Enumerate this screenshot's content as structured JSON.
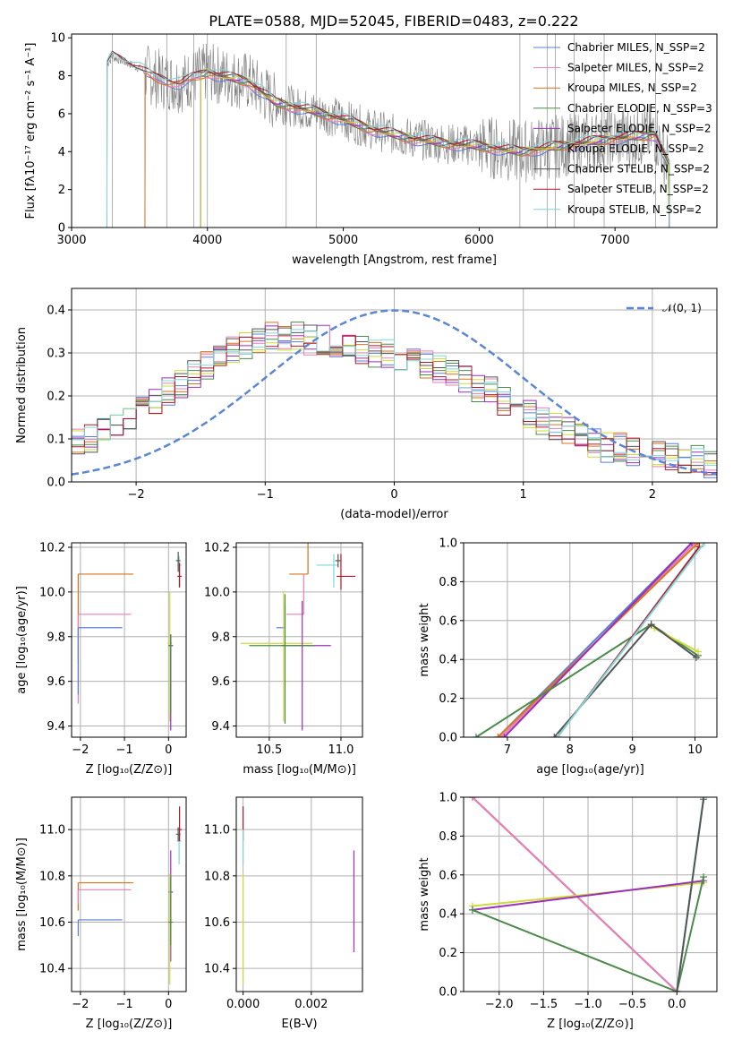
{
  "figure_title": "PLATE=0588, MJD=52045, FIBERID=0483, z=0.222",
  "colors": {
    "Chabrier MILES": "#5b7fd6",
    "Salpeter MILES": "#e87fb7",
    "Kroupa MILES": "#d9731c",
    "Chabrier ELODIE": "#4c8b4c",
    "Salpeter ELODIE": "#9b2fbf",
    "Kroupa ELODIE": "#cddc39",
    "Chabrier STELIB": "#555555",
    "Salpeter STELIB": "#b2182b",
    "Kroupa STELIB": "#7fd7d7",
    "data": "#7f7f7f",
    "normal": "#5b86d6"
  },
  "chart_data": [
    {
      "id": "spectrum",
      "type": "line",
      "title": "PLATE=0588, MJD=52045, FIBERID=0483, z=0.222",
      "xlabel": "wavelength [Angstrom, rest frame]",
      "ylabel": "Flux [fλ10⁻¹⁷ erg cm⁻² s⁻¹ A⁻¹]",
      "xlim": [
        3000,
        7750
      ],
      "ylim": [
        0,
        10.2
      ],
      "xticks": [
        "3000",
        "4000",
        "5000",
        "6000",
        "7000"
      ],
      "yticks": [
        "0",
        "2",
        "4",
        "6",
        "8",
        "10"
      ],
      "legend_position": "top-right",
      "legend": [
        "Chabrier MILES, N_SSP=2",
        "Salpeter MILES, N_SSP=2",
        "Kroupa MILES, N_SSP=2",
        "Chabrier ELODIE, N_SSP=3",
        "Salpeter ELODIE, N_SSP=2",
        "Kroupa ELODIE, N_SSP=2",
        "Chabrier STELIB, N_SSP=2",
        "Salpeter STELIB, N_SSP=2",
        "Kroupa STELIB, N_SSP=2"
      ],
      "continuum": {
        "x": [
          3260,
          3300,
          3400,
          3500,
          3600,
          3800,
          4000,
          4100,
          4300,
          4500,
          4800,
          5000,
          5200,
          5500,
          5800,
          6000,
          6300,
          6500,
          6700,
          7000,
          7300,
          7400
        ],
        "y": [
          8.6,
          9.0,
          8.7,
          8.4,
          7.9,
          7.6,
          8.2,
          8.0,
          7.7,
          6.6,
          6.1,
          5.7,
          5.2,
          4.7,
          4.4,
          4.3,
          4.0,
          4.2,
          4.4,
          4.7,
          4.9,
          3.2
        ]
      },
      "model_starts": {
        "MILES": 3540,
        "ELODIE": 3950,
        "STELIB": 3260
      }
    },
    {
      "id": "residuals",
      "type": "line",
      "xlabel": "(data-model)/error",
      "ylabel": "Normed distribution",
      "xlim": [
        -2.5,
        2.5
      ],
      "ylim": [
        0,
        0.45
      ],
      "xticks": [
        "−2",
        "−1",
        "0",
        "1",
        "2"
      ],
      "yticks": [
        "0.0",
        "0.1",
        "0.2",
        "0.3",
        "0.4"
      ],
      "legend_position": "top-right",
      "legend": [
        "𝒩(0, 1)"
      ],
      "grid": true,
      "bin_centers": [
        -2.45,
        -2.35,
        -2.25,
        -2.15,
        -2.05,
        -1.95,
        -1.85,
        -1.75,
        -1.65,
        -1.55,
        -1.45,
        -1.35,
        -1.25,
        -1.15,
        -1.05,
        -0.95,
        -0.85,
        -0.75,
        -0.65,
        -0.55,
        -0.45,
        -0.35,
        -0.25,
        -0.15,
        -0.05,
        0.05,
        0.15,
        0.25,
        0.35,
        0.45,
        0.55,
        0.65,
        0.75,
        0.85,
        0.95,
        1.05,
        1.15,
        1.25,
        1.35,
        1.45,
        1.55,
        1.65,
        1.75,
        1.85,
        1.95,
        2.05,
        2.15,
        2.25,
        2.35,
        2.45
      ],
      "envelope": [
        0.09,
        0.1,
        0.12,
        0.13,
        0.15,
        0.17,
        0.19,
        0.21,
        0.23,
        0.25,
        0.27,
        0.29,
        0.31,
        0.32,
        0.33,
        0.34,
        0.34,
        0.34,
        0.33,
        0.33,
        0.32,
        0.32,
        0.31,
        0.3,
        0.3,
        0.29,
        0.28,
        0.27,
        0.26,
        0.25,
        0.24,
        0.22,
        0.21,
        0.19,
        0.17,
        0.16,
        0.14,
        0.13,
        0.12,
        0.1,
        0.09,
        0.08,
        0.08,
        0.07,
        0.07,
        0.06,
        0.06,
        0.05,
        0.05,
        0.04
      ]
    },
    {
      "id": "age-vs-Z",
      "type": "scatter",
      "xlabel": "Z [log₁₀(Z/Z⊙)]",
      "ylabel": "age  [log₁₀(age/yr)]",
      "xlim": [
        -2.2,
        0.4
      ],
      "ylim": [
        9.35,
        10.22
      ],
      "xticks": [
        "−2",
        "−1",
        "0"
      ],
      "yticks": [
        "9.4",
        "9.6",
        "9.8",
        "10.0",
        "10.2"
      ],
      "grid": true,
      "points": [
        {
          "model": "Kroupa MILES",
          "x": -2.05,
          "x_err": [
            0,
            1.25
          ],
          "y": 10.08,
          "y_err": [
            0.4,
            0
          ]
        },
        {
          "model": "Salpeter MILES",
          "x": -2.05,
          "x_err": [
            0,
            1.2
          ],
          "y": 9.9,
          "y_err": [
            0.4,
            0
          ]
        },
        {
          "model": "Chabrier MILES",
          "x": -2.05,
          "x_err": [
            0,
            1.0
          ],
          "y": 9.84,
          "y_err": [
            0.3,
            0
          ]
        },
        {
          "model": "Kroupa ELODIE",
          "x": 0.03,
          "x_err": [
            0.05,
            0.05
          ],
          "y": 9.77,
          "y_err": [
            0.35,
            0.23
          ]
        },
        {
          "model": "Salpeter ELODIE",
          "x": 0.05,
          "x_err": [
            0.05,
            0.05
          ],
          "y": 9.76,
          "y_err": [
            0.38,
            0.05
          ]
        },
        {
          "model": "Chabrier ELODIE",
          "x": 0.05,
          "x_err": [
            0.05,
            0.05
          ],
          "y": 9.76,
          "y_err": [
            0.3,
            0.05
          ]
        },
        {
          "model": "Kroupa STELIB",
          "x": 0.24,
          "x_err": [
            0.05,
            0.05
          ],
          "y": 10.12,
          "y_err": [
            0.1,
            0.04
          ]
        },
        {
          "model": "Salpeter STELIB",
          "x": 0.25,
          "x_err": [
            0.05,
            0.05
          ],
          "y": 10.07,
          "y_err": [
            0.05,
            0.06
          ]
        },
        {
          "model": "Chabrier STELIB",
          "x": 0.22,
          "x_err": [
            0.05,
            0.05
          ],
          "y": 10.14,
          "y_err": [
            0.05,
            0.04
          ]
        }
      ]
    },
    {
      "id": "age-vs-mass",
      "type": "scatter",
      "xlabel": "mass [log₁₀(M/M⊙)]",
      "ylabel": "",
      "xlim": [
        10.27,
        11.15
      ],
      "ylim": [
        9.35,
        10.22
      ],
      "xticks": [
        "10.5",
        "11.0"
      ],
      "yticks": [
        "9.4",
        "9.6",
        "9.8",
        "10.0",
        "10.2"
      ],
      "grid": true,
      "points": [
        {
          "model": "Kroupa MILES",
          "x": 10.77,
          "x_err": [
            0.13,
            0
          ],
          "y": 10.08,
          "y_err": [
            0,
            0.25
          ]
        },
        {
          "model": "Salpeter MILES",
          "x": 10.74,
          "x_err": [
            0.12,
            0
          ],
          "y": 9.9,
          "y_err": [
            0,
            0.18
          ]
        },
        {
          "model": "Chabrier MILES",
          "x": 10.61,
          "x_err": [
            0.06,
            0
          ],
          "y": 9.84,
          "y_err": [
            0,
            0.1
          ]
        },
        {
          "model": "Kroupa ELODIE",
          "x": 10.6,
          "x_err": [
            0.3,
            0.2
          ],
          "y": 9.77,
          "y_err": [
            0.35,
            0.23
          ]
        },
        {
          "model": "Salpeter ELODIE",
          "x": 10.73,
          "x_err": [
            0.15,
            0.2
          ],
          "y": 9.76,
          "y_err": [
            0.38,
            0.2
          ]
        },
        {
          "model": "Chabrier ELODIE",
          "x": 10.61,
          "x_err": [
            0.25,
            0.2
          ],
          "y": 9.76,
          "y_err": [
            0.35,
            0.23
          ]
        },
        {
          "model": "Kroupa STELIB",
          "x": 10.95,
          "x_err": [
            0.12,
            0.03
          ],
          "y": 10.12,
          "y_err": [
            0.1,
            0.05
          ]
        },
        {
          "model": "Salpeter STELIB",
          "x": 11.0,
          "x_err": [
            0.03,
            0.1
          ],
          "y": 10.07,
          "y_err": [
            0.06,
            0.1
          ]
        },
        {
          "model": "Chabrier STELIB",
          "x": 10.98,
          "x_err": [
            0.02,
            0.02
          ],
          "y": 10.14,
          "y_err": [
            0.03,
            0.03
          ]
        }
      ]
    },
    {
      "id": "weight-vs-age",
      "type": "line",
      "xlabel": "age  [log₁₀(age/yr)]",
      "ylabel": "mass weight",
      "xlim": [
        6.3,
        10.35
      ],
      "ylim": [
        0,
        1
      ],
      "xticks": [
        "7",
        "8",
        "9",
        "10"
      ],
      "yticks": [
        "0.0",
        "0.2",
        "0.4",
        "0.6",
        "0.8",
        "1.0"
      ],
      "grid": true,
      "series": [
        {
          "model": "Chabrier MILES",
          "x": [
            6.85,
            9.95
          ],
          "y": [
            0.0,
            1.0
          ]
        },
        {
          "model": "Salpeter MILES",
          "x": [
            6.9,
            10.0
          ],
          "y": [
            0.0,
            1.0
          ]
        },
        {
          "model": "Kroupa MILES",
          "x": [
            6.85,
            10.05
          ],
          "y": [
            0.0,
            1.0
          ]
        },
        {
          "model": "Salpeter ELODIE",
          "x": [
            6.95,
            9.95
          ],
          "y": [
            0.0,
            1.0
          ]
        },
        {
          "model": "Chabrier ELODIE",
          "x": [
            6.5,
            9.3,
            10.05
          ],
          "y": [
            0.0,
            0.58,
            0.42
          ]
        },
        {
          "model": "Kroupa ELODIE",
          "x": [
            9.35,
            10.05
          ],
          "y": [
            0.56,
            0.44
          ]
        },
        {
          "model": "Chabrier STELIB",
          "x": [
            7.75,
            9.3,
            10.02
          ],
          "y": [
            0.0,
            0.58,
            0.41
          ]
        },
        {
          "model": "Salpeter STELIB",
          "x": [
            7.8,
            10.07
          ],
          "y": [
            0.0,
            0.98
          ]
        },
        {
          "model": "Kroupa STELIB",
          "x": [
            7.8,
            10.15
          ],
          "y": [
            0.0,
            1.0
          ]
        }
      ]
    },
    {
      "id": "mass-vs-Z",
      "type": "scatter",
      "xlabel": "Z [log₁₀(Z/Z⊙)]",
      "ylabel": "mass [log₁₀(M/M⊙)]",
      "xlim": [
        -2.2,
        0.4
      ],
      "ylim": [
        10.3,
        11.14
      ],
      "xticks": [
        "−2",
        "−1",
        "0"
      ],
      "yticks": [
        "10.4",
        "10.6",
        "10.8",
        "11.0"
      ],
      "grid": true,
      "points": [
        {
          "model": "Kroupa MILES",
          "x": -2.05,
          "x_err": [
            0,
            1.25
          ],
          "y": 10.77,
          "y_err": [
            0.12,
            0
          ]
        },
        {
          "model": "Salpeter MILES",
          "x": -2.05,
          "x_err": [
            0,
            1.2
          ],
          "y": 10.74,
          "y_err": [
            0.06,
            0
          ]
        },
        {
          "model": "Chabrier MILES",
          "x": -2.05,
          "x_err": [
            0,
            1.0
          ],
          "y": 10.61,
          "y_err": [
            0.07,
            0
          ]
        },
        {
          "model": "Salpeter ELODIE",
          "x": 0.05,
          "x_err": [
            0.05,
            0.05
          ],
          "y": 10.73,
          "y_err": [
            0.3,
            0.18
          ]
        },
        {
          "model": "Kroupa ELODIE",
          "x": 0.03,
          "x_err": [
            0.05,
            0.05
          ],
          "y": 10.61,
          "y_err": [
            0.28,
            0.2
          ]
        },
        {
          "model": "Chabrier ELODIE",
          "x": 0.05,
          "x_err": [
            0.05,
            0.05
          ],
          "y": 10.6,
          "y_err": [
            0.1,
            0.2
          ]
        },
        {
          "model": "Kroupa STELIB",
          "x": 0.24,
          "x_err": [
            0.05,
            0.05
          ],
          "y": 10.95,
          "y_err": [
            0.1,
            0.03
          ]
        },
        {
          "model": "Salpeter STELIB",
          "x": 0.25,
          "x_err": [
            0.05,
            0.05
          ],
          "y": 11.0,
          "y_err": [
            0.05,
            0.1
          ]
        },
        {
          "model": "Chabrier STELIB",
          "x": 0.22,
          "x_err": [
            0.05,
            0.05
          ],
          "y": 10.98,
          "y_err": [
            0.03,
            0.03
          ]
        }
      ]
    },
    {
      "id": "mass-vs-EBV",
      "type": "scatter",
      "xlabel": "E(B-V)",
      "ylabel": "",
      "xlim": [
        -0.0002,
        0.0035
      ],
      "ylim": [
        10.3,
        11.14
      ],
      "xticks": [
        "0.000",
        "0.002"
      ],
      "yticks": [
        "10.4",
        "10.6",
        "10.8",
        "11.0"
      ],
      "grid": true,
      "points": [
        {
          "model": "Salpeter ELODIE",
          "x": 0.00325,
          "x_err": [
            0,
            0
          ],
          "y": 10.73,
          "y_err": [
            0.26,
            0.18
          ]
        },
        {
          "model": "Kroupa ELODIE",
          "x": 0.0,
          "x_err": [
            0,
            0
          ],
          "y": 10.61,
          "y_err": [
            0.28,
            0.2
          ]
        },
        {
          "model": "Salpeter STELIB",
          "x": 0.0,
          "x_err": [
            0,
            0
          ],
          "y": 11.0,
          "y_err": [
            0.05,
            0.1
          ]
        },
        {
          "model": "Kroupa STELIB",
          "x": 0.0,
          "x_err": [
            0,
            0
          ],
          "y": 10.95,
          "y_err": [
            0.1,
            0.05
          ]
        }
      ]
    },
    {
      "id": "weight-vs-Z",
      "type": "line",
      "xlabel": "Z [log₁₀(Z/Z⊙)]",
      "ylabel": "mass weight",
      "xlim": [
        -2.4,
        0.45
      ],
      "ylim": [
        0,
        1
      ],
      "xticks": [
        "−2.0",
        "−1.5",
        "−1.0",
        "−0.5",
        "0.0"
      ],
      "yticks": [
        "0.0",
        "0.2",
        "0.4",
        "0.6",
        "0.8",
        "1.0"
      ],
      "grid": true,
      "series": [
        {
          "model": "Kroupa MILES",
          "x": [
            -2.3,
            0.0
          ],
          "y": [
            1.0,
            0.0
          ]
        },
        {
          "model": "Chabrier MILES",
          "x": [
            -2.3,
            0.0
          ],
          "y": [
            1.0,
            0.0
          ]
        },
        {
          "model": "Salpeter MILES",
          "x": [
            -2.3,
            0.0
          ],
          "y": [
            1.0,
            0.0
          ]
        },
        {
          "model": "Kroupa ELODIE",
          "x": [
            -2.3,
            0.3
          ],
          "y": [
            0.44,
            0.56
          ]
        },
        {
          "model": "Salpeter ELODIE",
          "x": [
            -2.3,
            0.3
          ],
          "y": [
            0.42,
            0.57
          ]
        },
        {
          "model": "Chabrier ELODIE",
          "x": [
            -2.3,
            0.0,
            0.3
          ],
          "y": [
            0.42,
            0.0,
            0.59
          ]
        },
        {
          "model": "Kroupa STELIB",
          "x": [
            0.0,
            0.3
          ],
          "y": [
            0.0,
            1.0
          ]
        },
        {
          "model": "Chabrier STELIB",
          "x": [
            0.0,
            0.3
          ],
          "y": [
            0.0,
            0.99
          ]
        }
      ]
    }
  ]
}
